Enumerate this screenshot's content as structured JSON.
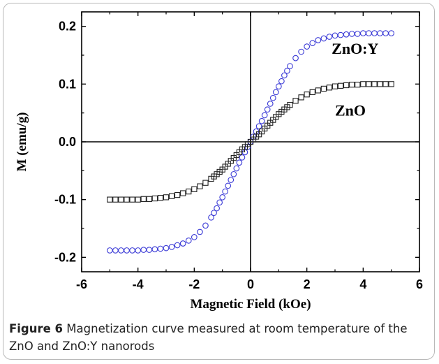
{
  "chart_data": {
    "type": "scatter",
    "xlabel": "Magnetic Field (kOe)",
    "ylabel": "M (emu/g)",
    "xlim": [
      -6,
      6
    ],
    "ylim": [
      -0.225,
      0.225
    ],
    "xticks": [
      -6,
      -4,
      -2,
      0,
      2,
      4,
      6
    ],
    "xtick_labels": [
      "-6",
      "-4",
      "-2",
      "0",
      "2",
      "4",
      "6"
    ],
    "yticks": [
      -0.2,
      -0.1,
      0.0,
      0.1,
      0.2
    ],
    "ytick_labels": [
      "-0.2",
      "-0.1",
      "0.0",
      "0.1",
      "0.2"
    ],
    "grid": false,
    "series": [
      {
        "name": "ZnO:Y",
        "marker": "circle",
        "color": "#3a3ad6",
        "saturation": 0.19,
        "field_scale": 0.88,
        "x": [
          -5.0,
          -4.8,
          -4.6,
          -4.4,
          -4.2,
          -4.0,
          -3.8,
          -3.6,
          -3.4,
          -3.2,
          -3.0,
          -2.8,
          -2.6,
          -2.4,
          -2.2,
          -2.0,
          -1.8,
          -1.6,
          -1.4,
          -1.3,
          -1.2,
          -1.1,
          -1.0,
          -0.9,
          -0.8,
          -0.7,
          -0.6,
          -0.5,
          -0.4,
          -0.3,
          -0.2,
          -0.1,
          0.0,
          0.1,
          0.2,
          0.3,
          0.4,
          0.5,
          0.6,
          0.7,
          0.8,
          0.9,
          1.0,
          1.1,
          1.2,
          1.3,
          1.4,
          1.6,
          1.8,
          2.0,
          2.2,
          2.4,
          2.6,
          2.8,
          3.0,
          3.2,
          3.4,
          3.6,
          3.8,
          4.0,
          4.2,
          4.4,
          4.6,
          4.8,
          5.0
        ],
        "y": [
          -0.188,
          -0.188,
          -0.188,
          -0.188,
          -0.188,
          -0.188,
          -0.187,
          -0.187,
          -0.186,
          -0.185,
          -0.184,
          -0.182,
          -0.179,
          -0.176,
          -0.171,
          -0.165,
          -0.156,
          -0.145,
          -0.131,
          -0.123,
          -0.115,
          -0.105,
          -0.096,
          -0.086,
          -0.076,
          -0.066,
          -0.056,
          -0.046,
          -0.036,
          -0.027,
          -0.018,
          -0.009,
          0.0,
          0.009,
          0.018,
          0.027,
          0.036,
          0.046,
          0.056,
          0.066,
          0.076,
          0.086,
          0.096,
          0.105,
          0.115,
          0.123,
          0.131,
          0.145,
          0.156,
          0.165,
          0.171,
          0.176,
          0.179,
          0.182,
          0.184,
          0.185,
          0.186,
          0.187,
          0.187,
          0.188,
          0.188,
          0.188,
          0.188,
          0.188,
          0.188
        ]
      },
      {
        "name": "ZnO",
        "marker": "square",
        "color": "#222222",
        "x": [
          -5.0,
          -4.8,
          -4.6,
          -4.4,
          -4.2,
          -4.0,
          -3.8,
          -3.6,
          -3.4,
          -3.2,
          -3.0,
          -2.8,
          -2.6,
          -2.4,
          -2.2,
          -2.0,
          -1.8,
          -1.6,
          -1.4,
          -1.3,
          -1.2,
          -1.1,
          -1.0,
          -0.9,
          -0.8,
          -0.7,
          -0.6,
          -0.5,
          -0.4,
          -0.3,
          -0.2,
          -0.1,
          0.0,
          0.1,
          0.2,
          0.3,
          0.4,
          0.5,
          0.6,
          0.7,
          0.8,
          0.9,
          1.0,
          1.1,
          1.2,
          1.3,
          1.4,
          1.6,
          1.8,
          2.0,
          2.2,
          2.4,
          2.6,
          2.8,
          3.0,
          3.2,
          3.4,
          3.6,
          3.8,
          4.0,
          4.2,
          4.4,
          4.6,
          4.8,
          5.0
        ],
        "y": [
          -0.1,
          -0.1,
          -0.1,
          -0.1,
          -0.1,
          -0.1,
          -0.099,
          -0.099,
          -0.098,
          -0.097,
          -0.096,
          -0.094,
          -0.092,
          -0.089,
          -0.086,
          -0.082,
          -0.077,
          -0.071,
          -0.064,
          -0.06,
          -0.056,
          -0.052,
          -0.048,
          -0.043,
          -0.038,
          -0.033,
          -0.028,
          -0.023,
          -0.018,
          -0.013,
          -0.009,
          -0.004,
          0.0,
          0.004,
          0.009,
          0.013,
          0.018,
          0.023,
          0.028,
          0.033,
          0.038,
          0.043,
          0.048,
          0.052,
          0.056,
          0.06,
          0.064,
          0.071,
          0.077,
          0.082,
          0.086,
          0.089,
          0.092,
          0.094,
          0.096,
          0.097,
          0.098,
          0.099,
          0.099,
          0.1,
          0.1,
          0.1,
          0.1,
          0.1,
          0.1
        ]
      }
    ]
  },
  "caption": {
    "figure_label": "Figure 6",
    "text": "Magnetization curve measured at room temperature of the ZnO and ZnO:Y nanorods"
  }
}
